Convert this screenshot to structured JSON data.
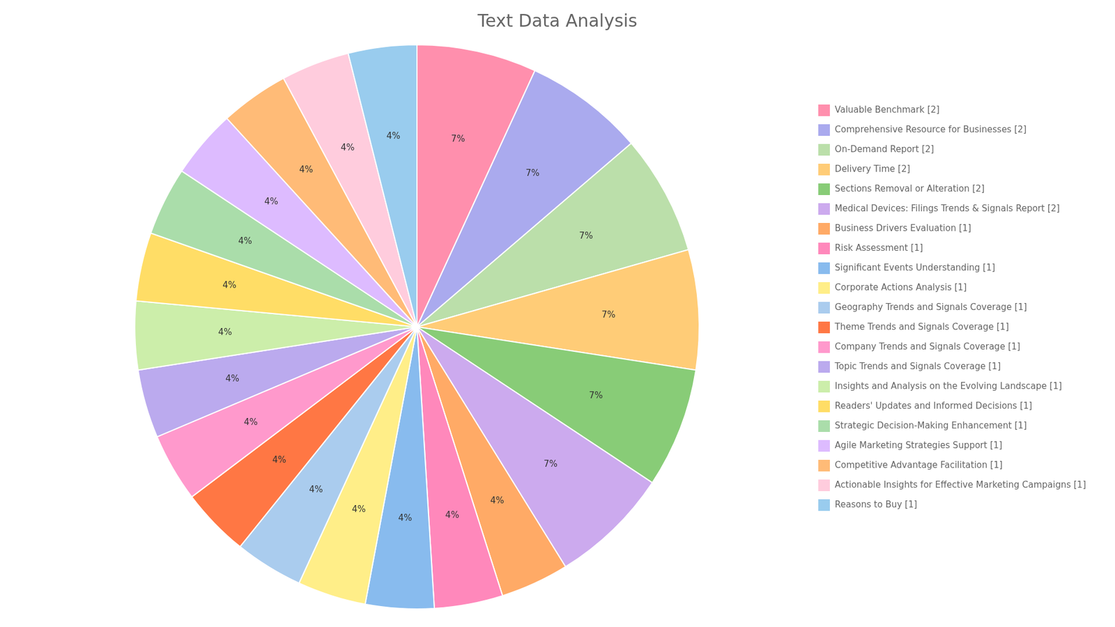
{
  "chart_data": {
    "type": "pie",
    "title": "Text Data Analysis",
    "categories": [
      "Valuable Benchmark [2]",
      "Comprehensive Resource for Businesses [2]",
      "On-Demand Report [2]",
      "Delivery Time [2]",
      "Sections Removal or Alteration [2]",
      "Medical Devices: Filings Trends & Signals Report [2]",
      "Business Drivers Evaluation [1]",
      "Risk Assessment [1]",
      "Significant Events Understanding [1]",
      "Corporate Actions Analysis [1]",
      "Geography Trends and Signals Coverage [1]",
      "Theme Trends and Signals Coverage [1]",
      "Company Trends and Signals Coverage [1]",
      "Topic Trends and Signals Coverage [1]",
      "Insights and Analysis on the Evolving Landscape [1]",
      "Readers' Updates and Informed Decisions [1]",
      "Strategic Decision-Making Enhancement [1]",
      "Agile Marketing Strategies Support [1]",
      "Competitive Advantage Facilitation [1]",
      "Actionable Insights for Effective Marketing Campaigns [1]",
      "Reasons to Buy [1]"
    ],
    "values": [
      7,
      7,
      7,
      7,
      7,
      7,
      4,
      4,
      4,
      4,
      4,
      4,
      4,
      4,
      4,
      4,
      4,
      4,
      4,
      4,
      4
    ],
    "value_labels": [
      "7%",
      "7%",
      "7%",
      "7%",
      "7%",
      "7%",
      "4%",
      "4%",
      "4%",
      "4%",
      "4%",
      "4%",
      "4%",
      "4%",
      "4%",
      "4%",
      "4%",
      "4%",
      "4%",
      "4%",
      "4%"
    ],
    "colors": [
      "#FF8FAD",
      "#AAAAEE",
      "#BBDFAA",
      "#FFCC77",
      "#88CC77",
      "#CCAAEE",
      "#FFAA66",
      "#FF88BB",
      "#88BBEE",
      "#FFEE88",
      "#AACCEE",
      "#FF7744",
      "#FF99CC",
      "#BBAAEE",
      "#CCEEAA",
      "#FFDD66",
      "#AADDAA",
      "#DDBBFF",
      "#FFBB77",
      "#FFCCDD",
      "#99CCEE"
    ],
    "legend": "right",
    "data_labels": true
  }
}
